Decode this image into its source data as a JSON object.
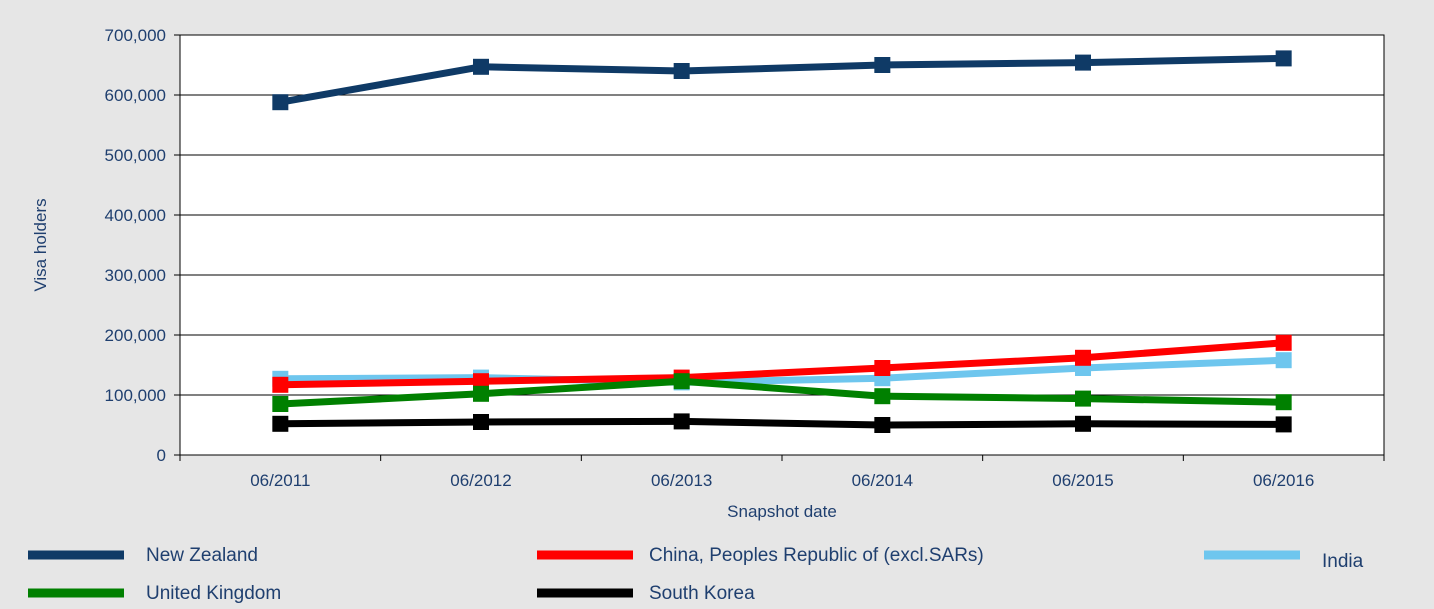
{
  "chart_data": {
    "type": "line",
    "xlabel": "Snapshot date",
    "ylabel": "Visa holders",
    "categories": [
      "06/2011",
      "06/2012",
      "06/2013",
      "06/2014",
      "06/2015",
      "06/2016"
    ],
    "ylim": [
      0,
      700000
    ],
    "yticks": [
      "0",
      "100,000",
      "200,000",
      "300,000",
      "400,000",
      "500,000",
      "600,000",
      "700,000"
    ],
    "grid": true,
    "legend_position": "bottom",
    "series": [
      {
        "name": "New Zealand",
        "color": "#0f3a66",
        "values": [
          588000,
          647000,
          640000,
          650000,
          654000,
          661000
        ]
      },
      {
        "name": "China, Peoples Republic of (excl.SARs)",
        "color": "#ff0000",
        "values": [
          117000,
          123000,
          129000,
          145000,
          162000,
          187000
        ]
      },
      {
        "name": "India",
        "color": "#6ec6ee",
        "values": [
          127000,
          129000,
          121000,
          128000,
          145000,
          158000
        ]
      },
      {
        "name": "United Kingdom",
        "color": "#008000",
        "values": [
          85000,
          102000,
          123000,
          98000,
          94000,
          88000
        ]
      },
      {
        "name": "South Korea",
        "color": "#000000",
        "values": [
          52000,
          55000,
          56000,
          50000,
          52000,
          51000
        ]
      }
    ]
  }
}
